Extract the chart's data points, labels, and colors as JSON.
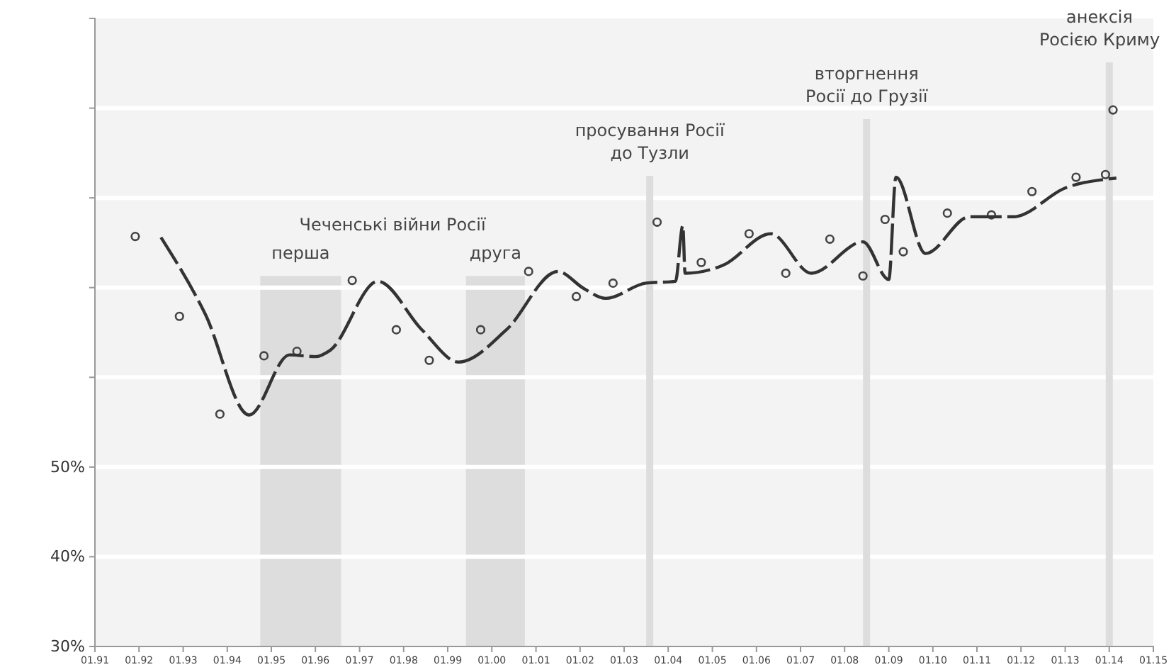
{
  "chart_data": {
    "type": "line",
    "x": [
      "1991-12",
      "1992-12",
      "1993-11",
      "1994-11",
      "1995-08",
      "1996-11",
      "1997-11",
      "1998-08",
      "1999-10",
      "2000-11",
      "2001-12",
      "2002-10",
      "2003-10",
      "2004-10",
      "2005-11",
      "2006-09",
      "2007-09",
      "2008-06",
      "2008-12",
      "2009-05",
      "2010-05",
      "2011-05",
      "2012-04",
      "2013-04",
      "2013-12",
      "2014-02"
    ],
    "series": [
      {
        "type": "scatter",
        "color": "#444444",
        "marker": "circle",
        "values": [
          75.7,
          66.8,
          55.9,
          62.4,
          62.9,
          70.8,
          65.3,
          61.9,
          65.3,
          71.8,
          69.0,
          70.5,
          77.3,
          72.8,
          76.0,
          71.6,
          75.4,
          71.3,
          77.6,
          74.0,
          78.3,
          78.1,
          80.7,
          82.3,
          82.6,
          89.8
        ]
      },
      {
        "color": "#333333",
        "line_style": "dashed",
        "marker": "none",
        "x": [
          "1992-07",
          "1993-07",
          "1994-07",
          "1995-06",
          "1996-01",
          "1996-05",
          "1997-06",
          "1998-06",
          "1999-04",
          "2000-05",
          "2001-07",
          "2002-02",
          "2002-08",
          "2003-07",
          "2004-03",
          "2004-05",
          "2004-05-20",
          "2005-04",
          "2006-05",
          "2007-04",
          "2008-06",
          "2009-01",
          "2009-03",
          "2009-11",
          "2010-11",
          "2011-11",
          "2013-01",
          "2014-03"
        ],
        "values": [
          75.6,
          67.1,
          55.8,
          62.5,
          62.3,
          63.0,
          70.7,
          65.3,
          61.7,
          65.3,
          71.8,
          69.9,
          68.8,
          70.5,
          70.7,
          76.9,
          71.6,
          72.5,
          76.0,
          71.6,
          75.1,
          70.9,
          82.3,
          73.8,
          77.9,
          77.9,
          81.1,
          82.2
        ]
      }
    ],
    "xlim": [
      "1991-01",
      "2015-01"
    ],
    "xticks": [
      {
        "value": "1991-01",
        "label": "01.91"
      },
      {
        "value": "1992-01",
        "label": "01.92"
      },
      {
        "value": "1993-01",
        "label": "01.93"
      },
      {
        "value": "1994-01",
        "label": "01.94"
      },
      {
        "value": "1995-01",
        "label": "01.95"
      },
      {
        "value": "1996-01",
        "label": "01.96"
      },
      {
        "value": "1997-01",
        "label": "01.97"
      },
      {
        "value": "1998-01",
        "label": "01.98"
      },
      {
        "value": "1999-01",
        "label": "01.99"
      },
      {
        "value": "2000-01",
        "label": "01.00"
      },
      {
        "value": "2001-01",
        "label": "01.01"
      },
      {
        "value": "2002-01",
        "label": "01.02"
      },
      {
        "value": "2003-01",
        "label": "01.03"
      },
      {
        "value": "2004-01",
        "label": "01.04"
      },
      {
        "value": "2005-01",
        "label": "01.05"
      },
      {
        "value": "2006-01",
        "label": "01.06"
      },
      {
        "value": "2007-01",
        "label": "01.07"
      },
      {
        "value": "2008-01",
        "label": "01.08"
      },
      {
        "value": "2009-01",
        "label": "01.09"
      },
      {
        "value": "2010-01",
        "label": "01.10"
      },
      {
        "value": "2011-01",
        "label": "01.11"
      },
      {
        "value": "2012-01",
        "label": "01.12"
      },
      {
        "value": "2013-01",
        "label": "01.13"
      },
      {
        "value": "2014-01",
        "label": "01.14"
      },
      {
        "value": "2015-01",
        "label": "01.15"
      }
    ],
    "ylim": [
      30,
      100
    ],
    "yticks": [
      {
        "value": 30,
        "label": "30%"
      },
      {
        "value": 40,
        "label": "40%"
      },
      {
        "value": 50,
        "label": "50%"
      },
      {
        "value": 60,
        "label": null
      },
      {
        "value": 70,
        "label": null
      },
      {
        "value": 80,
        "label": null
      },
      {
        "value": 90,
        "label": null
      }
    ],
    "grid": "y",
    "bands": [
      {
        "axis": "x",
        "from": "1994-10",
        "to": "1996-08",
        "label": "перша",
        "color": "#dddddd"
      },
      {
        "axis": "x",
        "from": "1999-06",
        "to": "2000-10",
        "label": "друга",
        "color": "#dddddd"
      }
    ],
    "ref_lines": [
      {
        "axis": "x",
        "value": "2003-08",
        "label": "просування Росії\nдо Тузли",
        "color": "#dddddd"
      },
      {
        "axis": "x",
        "value": "2008-07",
        "label": "вторгнення\nРосії до Грузії",
        "color": "#dddddd"
      },
      {
        "axis": "x",
        "value": "2014-01",
        "label": "анексія\nРосією Криму",
        "color": "#dddddd"
      }
    ],
    "annotations": [
      "Чеченські війни Росії"
    ]
  }
}
